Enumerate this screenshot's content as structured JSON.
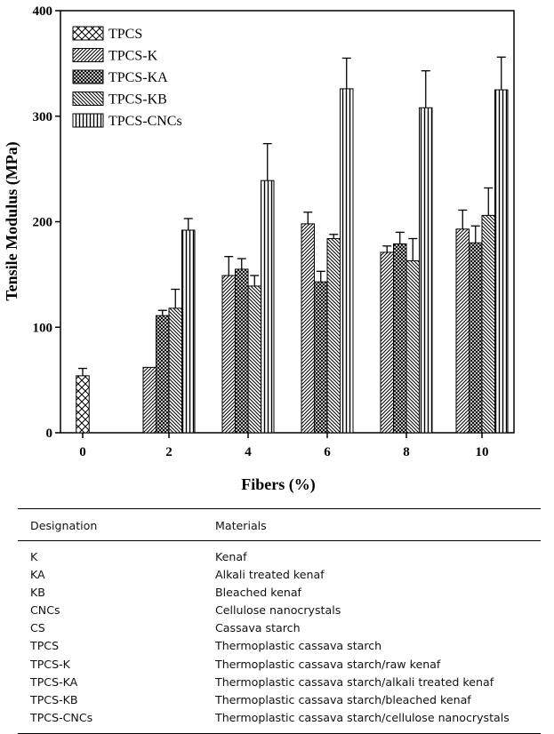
{
  "chart_data": {
    "type": "bar",
    "title": "",
    "xlabel": "Fibers (%)",
    "ylabel": "Tensile Modulus (MPa)",
    "ylim": [
      0,
      400
    ],
    "yticks": [
      0,
      100,
      200,
      300,
      400
    ],
    "categories": [
      "0",
      "2",
      "4",
      "6",
      "8",
      "10"
    ],
    "legend_position": "top-left",
    "grid": false,
    "series": [
      {
        "name": "TPCS",
        "pattern": "crosshatch",
        "values": [
          54,
          null,
          null,
          null,
          null,
          null
        ],
        "errors": [
          7,
          null,
          null,
          null,
          null,
          null
        ]
      },
      {
        "name": "TPCS-K",
        "pattern": "diag-fwd",
        "values": [
          null,
          62,
          149,
          198,
          171,
          193
        ],
        "errors": [
          null,
          0,
          18,
          11,
          6,
          18
        ]
      },
      {
        "name": "TPCS-KA",
        "pattern": "dense-cross",
        "values": [
          null,
          111,
          155,
          143,
          179,
          180
        ],
        "errors": [
          null,
          5,
          10,
          10,
          11,
          16
        ]
      },
      {
        "name": "TPCS-KB",
        "pattern": "diag-back",
        "values": [
          null,
          118,
          139,
          184,
          163,
          206
        ],
        "errors": [
          null,
          18,
          10,
          4,
          21,
          26
        ]
      },
      {
        "name": "TPCS-CNCs",
        "pattern": "vertical",
        "values": [
          null,
          192,
          239,
          326,
          308,
          325
        ],
        "errors": [
          null,
          11,
          35,
          29,
          35,
          31
        ]
      }
    ]
  },
  "table": {
    "headers": [
      "Designation",
      "Materials"
    ],
    "rows": [
      [
        "K",
        "Kenaf"
      ],
      [
        "KA",
        "Alkali treated kenaf"
      ],
      [
        "KB",
        "Bleached kenaf"
      ],
      [
        "CNCs",
        "Cellulose nanocrystals"
      ],
      [
        "CS",
        "Cassava starch"
      ],
      [
        "TPCS",
        "Thermoplastic cassava starch"
      ],
      [
        "TPCS-K",
        "Thermoplastic cassava starch/raw kenaf"
      ],
      [
        "TPCS-KA",
        "Thermoplastic cassava starch/alkali treated kenaf"
      ],
      [
        "TPCS-KB",
        "Thermoplastic cassava starch/bleached kenaf"
      ],
      [
        "TPCS-CNCs",
        "Thermoplastic cassava starch/cellulose nanocrystals"
      ]
    ]
  }
}
